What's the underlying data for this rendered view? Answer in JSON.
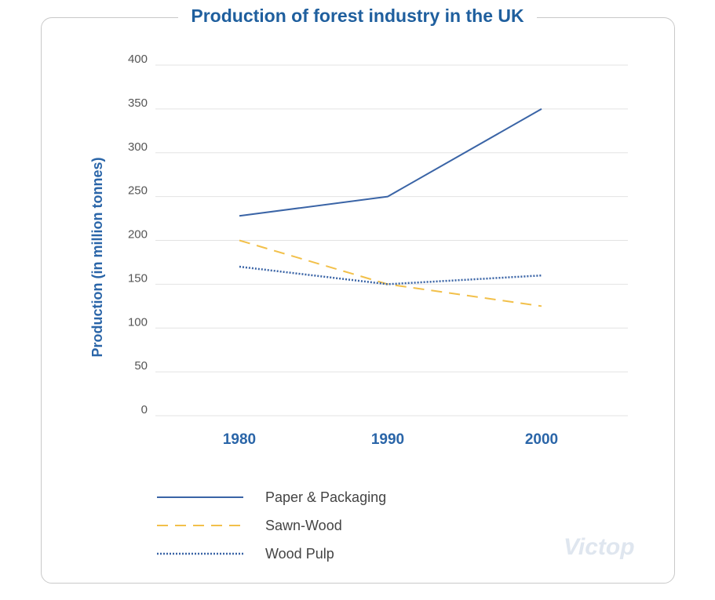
{
  "chart_data": {
    "type": "line",
    "title": "Production of forest industry in the UK",
    "ylabel": "Production (in million tonnes)",
    "xlabel": "",
    "categories": [
      "1980",
      "1990",
      "2000"
    ],
    "ylim": [
      0,
      400
    ],
    "yticks": [
      0,
      50,
      100,
      150,
      200,
      250,
      300,
      350,
      400
    ],
    "grid": true,
    "legend_position": "bottom-left",
    "series": [
      {
        "name": "Paper & Packaging",
        "values": [
          228,
          250,
          350
        ],
        "color": "#3a64a6",
        "style": "solid"
      },
      {
        "name": "Sawn-Wood",
        "values": [
          200,
          150,
          125
        ],
        "color": "#f2c04a",
        "style": "dashed"
      },
      {
        "name": "Wood Pulp",
        "values": [
          170,
          150,
          160
        ],
        "color": "#3a64a6",
        "style": "dotted"
      }
    ]
  },
  "watermark": "Victop"
}
